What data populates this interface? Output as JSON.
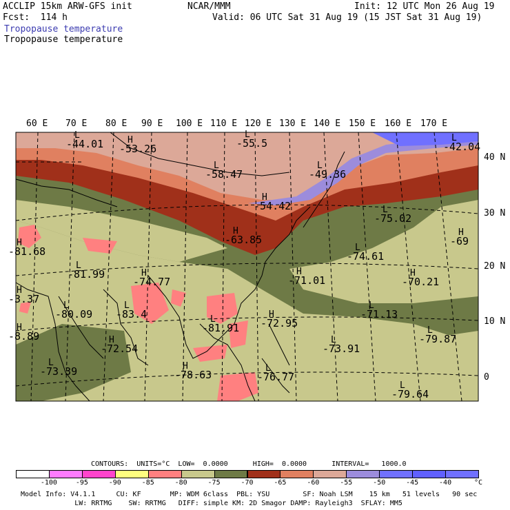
{
  "header": {
    "model": "ACCLIP 15km ARW-GFS init",
    "forecast": "Fcst:  114 h",
    "center": "NCAR/MMM",
    "init": "Init: 12 UTC Mon 26 Aug 19",
    "valid": "Valid: 06 UTC Sat 31 Aug 19 (15 JST Sat 31 Aug 19)",
    "field_shaded": "Tropopause temperature",
    "field_contour": "Tropopause temperature",
    "field_shaded_color": "#3b3bb0",
    "field_contour_color": "#000000"
  },
  "map": {
    "lon_labels": [
      "60 E",
      "70 E",
      "80 E",
      "90 E",
      "100 E",
      "110 E",
      "120 E",
      "130 E",
      "140 E",
      "150 E",
      "160 E",
      "170 E"
    ],
    "lat_labels": [
      "40 N",
      "30 N",
      "20 N",
      "10 N",
      "0"
    ],
    "extremes": [
      {
        "type": "L",
        "value": "-44.01"
      },
      {
        "type": "H",
        "value": "-53.26"
      },
      {
        "type": "L",
        "value": "-55.5"
      },
      {
        "type": "L",
        "value": "-58.47"
      },
      {
        "type": "L",
        "value": "-49.36"
      },
      {
        "type": "L",
        "value": "-42.04"
      },
      {
        "type": "H",
        "value": "-54.42"
      },
      {
        "type": "H",
        "value": "-63.85"
      },
      {
        "type": "L",
        "value": "-75.02"
      },
      {
        "type": "H",
        "value": "-69"
      },
      {
        "type": "H",
        "value": "-81.68"
      },
      {
        "type": "L",
        "value": "-81.99"
      },
      {
        "type": "H",
        "value": "-74.77"
      },
      {
        "type": "L",
        "value": "-74.61"
      },
      {
        "type": "H",
        "value": "-71.01"
      },
      {
        "type": "H",
        "value": "-70.21"
      },
      {
        "type": "L",
        "value": "-80.09"
      },
      {
        "type": "L",
        "value": "-83.4"
      },
      {
        "type": "L",
        "value": "-81.91"
      },
      {
        "type": "H",
        "value": "-72.95"
      },
      {
        "type": "L",
        "value": "-71.13"
      },
      {
        "type": "L",
        "value": "-79.87"
      },
      {
        "type": "H",
        "value": "-72.54"
      },
      {
        "type": "L",
        "value": "-73.91"
      },
      {
        "type": "L",
        "value": "-73.39"
      },
      {
        "type": "H",
        "value": "-78.63"
      },
      {
        "type": "L",
        "value": "-76.77"
      },
      {
        "type": "L",
        "value": "-79.64"
      },
      {
        "type": "H",
        "value": "-3.37"
      },
      {
        "type": "H",
        "value": "-8.89"
      }
    ]
  },
  "legend": {
    "info_line": "CONTOURS:  UNITS=°C  LOW=  0.0000      HIGH=  0.0000      INTERVAL=   1000.0",
    "ticks": [
      "-100",
      "-95",
      "-90",
      "-85",
      "-80",
      "-75",
      "-70",
      "-65",
      "-60",
      "-55",
      "-50",
      "-45",
      "-40"
    ],
    "unit": "°C",
    "colors": [
      "#ffffff",
      "#ff7bff",
      "#ff44cc",
      "#ffff80",
      "#ff8080",
      "#c8c88c",
      "#6e7a46",
      "#a0301a",
      "#e08060",
      "#dca898",
      "#9c8cdc",
      "#7070ff",
      "#7070ff"
    ]
  },
  "footer": {
    "line1": "Model Info: V4.1.1     CU: KF       MP: WDM 6class  PBL: YSU        SF: Noah LSM    15 km   51 levels   90 sec",
    "line2": "             LW: RRTMG    SW: RRTMG   DIFF: simple KM: 2D Smagor DAMP: Rayleigh3  SFLAY: MM5"
  }
}
